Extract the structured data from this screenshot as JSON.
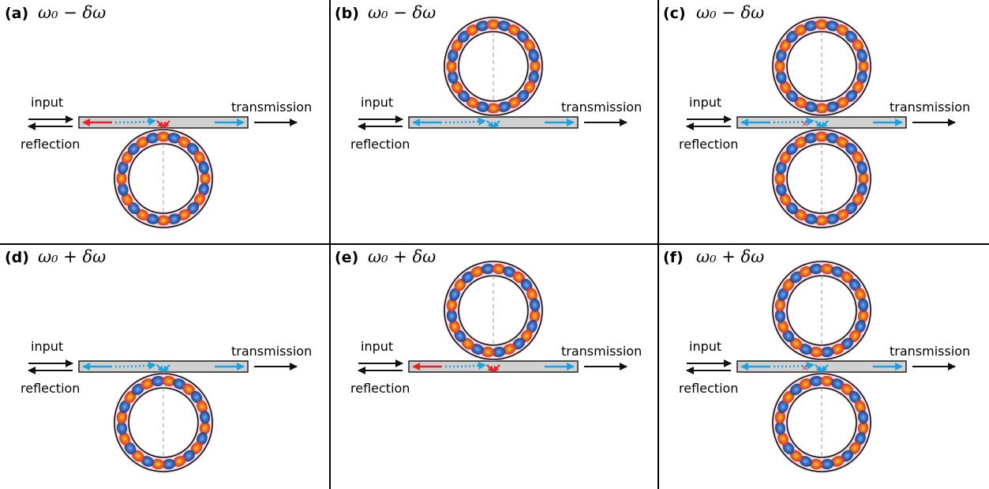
{
  "figure": {
    "panels": [
      {
        "id": "a",
        "letter": "(a)",
        "freq": "ω₀ − δω",
        "rings": [
          "below"
        ],
        "mode": "lo",
        "reflection_red": true,
        "input": "input",
        "reflection": "reflection",
        "transmission": "transmission"
      },
      {
        "id": "b",
        "letter": "(b)",
        "freq": "ω₀ − δω",
        "rings": [
          "above"
        ],
        "mode": "lo",
        "reflection_red": false,
        "input": "input",
        "reflection": "reflection",
        "transmission": "transmission"
      },
      {
        "id": "c",
        "letter": "(c)",
        "freq": "ω₀ − δω",
        "rings": [
          "above",
          "below"
        ],
        "mode": "lo",
        "reflection_red": false,
        "input": "input",
        "reflection": "reflection",
        "transmission": "transmission"
      },
      {
        "id": "d",
        "letter": "(d)",
        "freq": "ω₀ + δω",
        "rings": [
          "below"
        ],
        "mode": "hi",
        "reflection_red": false,
        "input": "input",
        "reflection": "reflection",
        "transmission": "transmission"
      },
      {
        "id": "e",
        "letter": "(e)",
        "freq": "ω₀ + δω",
        "rings": [
          "above"
        ],
        "mode": "hi",
        "reflection_red": true,
        "input": "input",
        "reflection": "reflection",
        "transmission": "transmission"
      },
      {
        "id": "f",
        "letter": "(f)",
        "freq": "ω₀ + δω",
        "rings": [
          "above",
          "below"
        ],
        "mode": "hi",
        "reflection_red": false,
        "input": "input",
        "reflection": "reflection",
        "transmission": "transmission"
      }
    ],
    "colors": {
      "red_arrow": "#e8202a",
      "blue_arrow": "#1aa3e0",
      "waveguide": "#d0d0d0",
      "hot": "#f5d020",
      "warm": "#e8451d",
      "cool": "#3b6fc2"
    }
  }
}
